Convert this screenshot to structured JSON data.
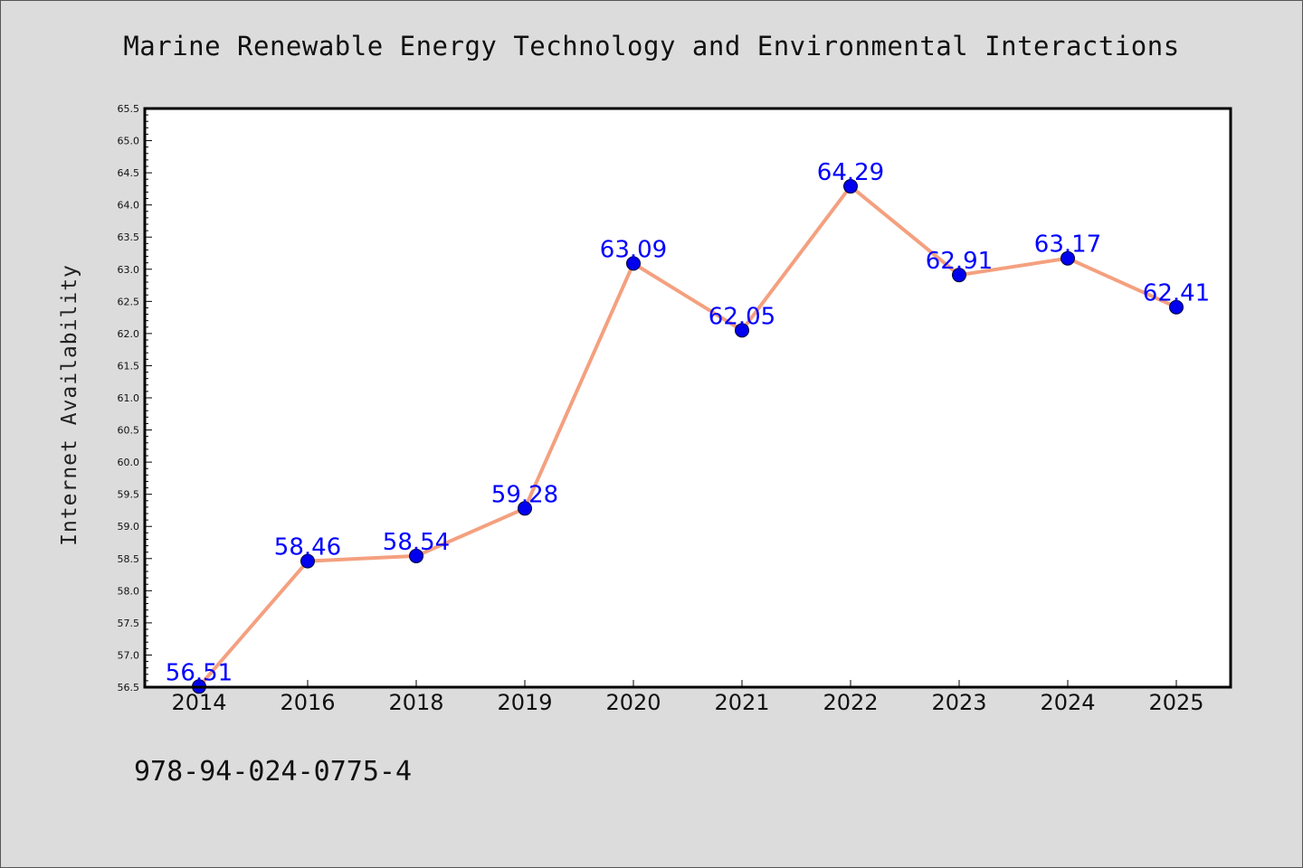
{
  "chart_data": {
    "type": "line",
    "title": "Marine Renewable Energy Technology and Environmental Interactions",
    "xlabel": "",
    "ylabel": "Internet Availability",
    "categories": [
      "2014",
      "2016",
      "2018",
      "2019",
      "2020",
      "2021",
      "2022",
      "2023",
      "2024",
      "2025"
    ],
    "series": [
      {
        "values": [
          56.51,
          58.46,
          58.54,
          59.28,
          63.09,
          62.05,
          64.29,
          62.91,
          63.17,
          62.41
        ],
        "labels": [
          "56.51",
          "58.46",
          "58.54",
          "59.28",
          "63.09",
          "62.05",
          "64.29",
          "62.91",
          "63.17",
          "62.41"
        ],
        "line_color": "#f4a07f",
        "marker_color": "#0000ee"
      }
    ],
    "ylim": [
      56.5,
      65.5
    ],
    "yticks": [
      "56.5",
      "57.0",
      "57.5",
      "58.0",
      "58.5",
      "59.0",
      "59.5",
      "60.0",
      "60.5",
      "61.0",
      "61.5",
      "62.0",
      "62.5",
      "63.0",
      "63.5",
      "64.0",
      "64.5",
      "65.0",
      "65.5"
    ],
    "grid": false,
    "legend": "none"
  },
  "footer": {
    "isbn": "978-94-024-0775-4"
  }
}
